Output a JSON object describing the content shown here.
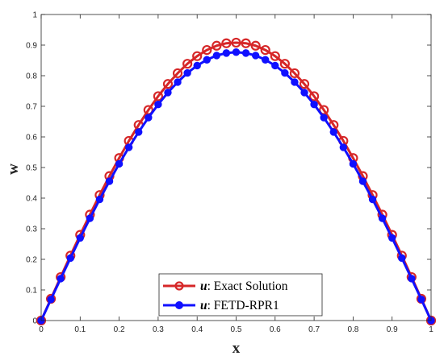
{
  "chart_data": {
    "type": "line",
    "xlabel": "x",
    "ylabel": "w",
    "xlim": [
      0,
      1
    ],
    "ylim": [
      0,
      1
    ],
    "xticks": [
      "0",
      "0.1",
      "0.2",
      "0.3",
      "0.4",
      "0.5",
      "0.6",
      "0.7",
      "0.8",
      "0.9",
      "1"
    ],
    "yticks": [
      "0",
      "0.1",
      "0.2",
      "0.3",
      "0.4",
      "0.5",
      "0.6",
      "0.7",
      "0.8",
      "0.9",
      "1"
    ],
    "grid": false,
    "legend_position": "bottom-center",
    "x": [
      0,
      0.025,
      0.05,
      0.075,
      0.1,
      0.125,
      0.15,
      0.175,
      0.2,
      0.225,
      0.25,
      0.275,
      0.3,
      0.325,
      0.35,
      0.375,
      0.4,
      0.425,
      0.45,
      0.475,
      0.5,
      0.525,
      0.55,
      0.575,
      0.6,
      0.625,
      0.65,
      0.675,
      0.7,
      0.725,
      0.75,
      0.775,
      0.8,
      0.825,
      0.85,
      0.875,
      0.9,
      0.925,
      0.95,
      0.975,
      1
    ],
    "series": [
      {
        "name": "u: Exact Solution",
        "legend_math": "u",
        "legend_text": ": Exact Solution",
        "color": "#d62728",
        "marker": "open-circle",
        "values": [
          0,
          0.071,
          0.142,
          0.212,
          0.28,
          0.346,
          0.41,
          0.472,
          0.531,
          0.587,
          0.639,
          0.688,
          0.733,
          0.773,
          0.808,
          0.839,
          0.864,
          0.884,
          0.898,
          0.906,
          0.908,
          0.906,
          0.898,
          0.884,
          0.864,
          0.839,
          0.808,
          0.773,
          0.733,
          0.688,
          0.639,
          0.587,
          0.531,
          0.472,
          0.41,
          0.346,
          0.28,
          0.212,
          0.142,
          0.071,
          0
        ]
      },
      {
        "name": "u: FETD-RPR1",
        "legend_math": "u",
        "legend_text": ": FETD-RPR1",
        "color": "#1010ff",
        "marker": "filled-circle",
        "values": [
          0,
          0.069,
          0.137,
          0.204,
          0.27,
          0.334,
          0.396,
          0.455,
          0.512,
          0.566,
          0.616,
          0.663,
          0.706,
          0.745,
          0.779,
          0.809,
          0.833,
          0.852,
          0.866,
          0.874,
          0.877,
          0.874,
          0.866,
          0.852,
          0.833,
          0.809,
          0.779,
          0.745,
          0.706,
          0.663,
          0.616,
          0.566,
          0.512,
          0.455,
          0.396,
          0.334,
          0.27,
          0.204,
          0.137,
          0.069,
          0
        ]
      }
    ]
  }
}
